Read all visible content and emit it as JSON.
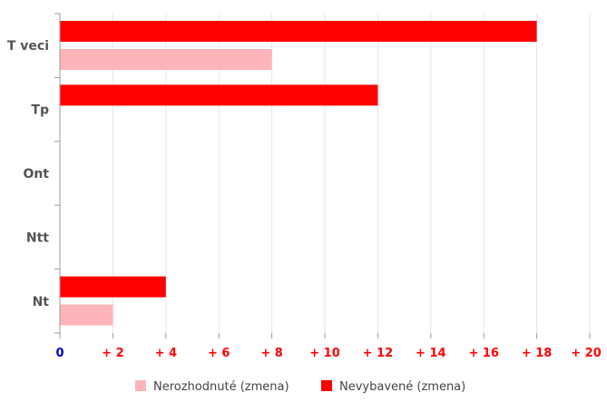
{
  "chart_data": {
    "type": "bar",
    "orientation": "horizontal",
    "categories": [
      "T veci",
      "Tp",
      "Ont",
      "Ntt",
      "Nt"
    ],
    "series": [
      {
        "name": "Nevybavené (zmena)",
        "color": "#ff0000",
        "values": [
          18,
          12,
          0,
          0,
          4
        ]
      },
      {
        "name": "Nerozhodnuté (zmena)",
        "color": "#ffb3ba",
        "values": [
          8,
          0,
          0,
          0,
          2
        ]
      }
    ],
    "x_ticks": [
      {
        "value": 0,
        "label": "0"
      },
      {
        "value": 2,
        "label": "+ 2"
      },
      {
        "value": 4,
        "label": "+ 4"
      },
      {
        "value": 6,
        "label": "+ 6"
      },
      {
        "value": 8,
        "label": "+ 8"
      },
      {
        "value": 10,
        "label": "+ 10"
      },
      {
        "value": 12,
        "label": "+ 12"
      },
      {
        "value": 14,
        "label": "+ 14"
      },
      {
        "value": 16,
        "label": "+ 16"
      },
      {
        "value": 18,
        "label": "+ 18"
      },
      {
        "value": 20,
        "label": "+ 20"
      }
    ],
    "xlim": [
      0,
      20
    ],
    "grid": true,
    "legend_position": "bottom",
    "legend_order": [
      "Nerozhodnuté (zmena)",
      "Nevybavené (zmena)"
    ],
    "colors": {
      "tick_zero": "#0000cc",
      "tick_positive": "#ff0000",
      "grid": "#e6e6e6",
      "axis": "#999999"
    }
  }
}
